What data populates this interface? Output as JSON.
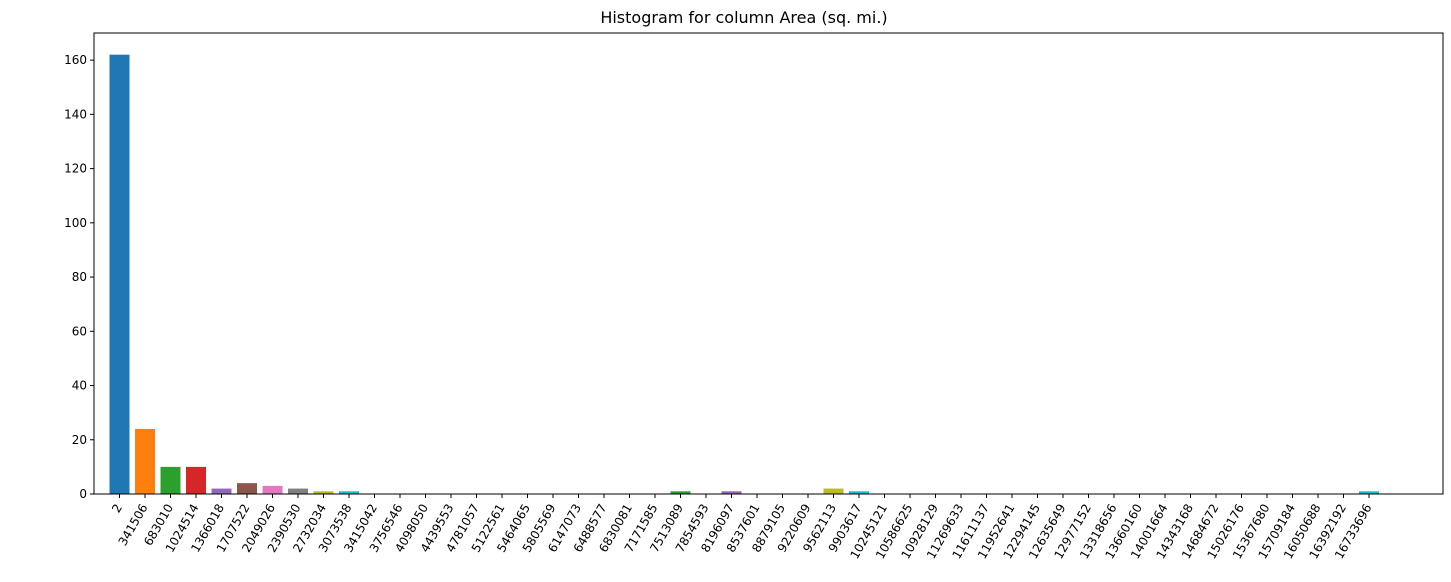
{
  "chart_data": {
    "type": "bar",
    "title": "Histogram for column Area (sq. mi.)",
    "xlabel": "",
    "ylabel": "",
    "ylim": [
      0,
      170
    ],
    "yticks": [
      0,
      20,
      40,
      60,
      80,
      100,
      120,
      140,
      160
    ],
    "categories": [
      "2",
      "341506",
      "683010",
      "1024514",
      "1366018",
      "1707522",
      "2049026",
      "2390530",
      "2732034",
      "3073538",
      "3415042",
      "3756546",
      "4098050",
      "4439553",
      "4781057",
      "5122561",
      "5464065",
      "5805569",
      "6147073",
      "6488577",
      "6830081",
      "7171585",
      "7513089",
      "7854593",
      "8196097",
      "8537601",
      "8879105",
      "9220609",
      "9562113",
      "9903617",
      "10245121",
      "10586625",
      "10928129",
      "11269633",
      "11611137",
      "11952641",
      "12294145",
      "12635649",
      "12977152",
      "13318656",
      "13660160",
      "14001664",
      "14343168",
      "14684672",
      "15026176",
      "15367680",
      "15709184",
      "16050688",
      "16392192",
      "16733696"
    ],
    "values": [
      162,
      24,
      10,
      10,
      2,
      4,
      3,
      2,
      1,
      1,
      0,
      0,
      0,
      0,
      0,
      0,
      0,
      0,
      0,
      0,
      0,
      0,
      1,
      0,
      1,
      0,
      0,
      0,
      2,
      1,
      0,
      0,
      0,
      0,
      0,
      0,
      0,
      0,
      0,
      0,
      0,
      0,
      0,
      0,
      0,
      0,
      0,
      0,
      0,
      1
    ],
    "colors": [
      "#1f77b4",
      "#ff7f0e",
      "#2ca02c",
      "#d62728",
      "#9467bd",
      "#8c564b",
      "#e377c2",
      "#7f7f7f",
      "#bcbd22",
      "#17becf"
    ],
    "grid": false,
    "legend": "none"
  }
}
